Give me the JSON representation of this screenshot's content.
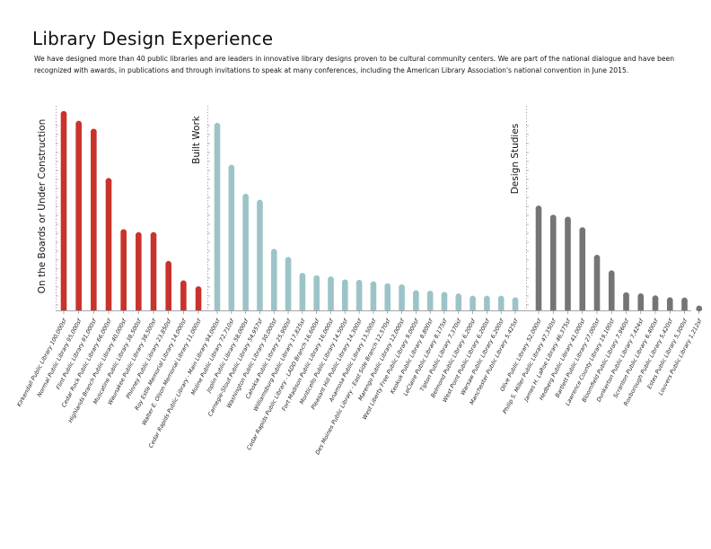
{
  "title": "Library Design Experience",
  "description": "We have designed more than 40 public libraries and are leaders in innovative library designs proven to be cultural community centers. We are part of the national dialogue and have been recognized with awards, in publications and through invitations to speak at many conferences, including the American Library Association's national convention in June 2015.",
  "colors": {
    "red": "#c8332b",
    "teal": "#9cc4c8",
    "gray": "#757575",
    "axis": "#888888"
  },
  "chart_data": {
    "type": "bar",
    "ylim": [
      0,
      102000
    ],
    "value_unit": "sf",
    "series": [
      {
        "name": "On the Boards or Under Construction",
        "color": "#c8332b",
        "categories": [
          "Kirkendall Public Library",
          "Normal Public Library",
          "Flint Public Library",
          "Cedar Rock Public Library",
          "Highlands Branch Public Library",
          "Muscatine Public Library",
          "Waunakee Public Library",
          "Phinney Public Library",
          "Roy Estle Memorial Library",
          "Walter E. Olson Memorial Library"
        ],
        "labels": [
          "Kirkendall Public Library 100,000sf",
          "Normal Public Library 95,000sf",
          "Flint Public Library 91,000sf",
          "Cedar Rock Public Library 66,000sf",
          "Highlands Branch Public Library 40,000sf",
          "Muscatine Public Library 38,500sf",
          "Waunakee Public Library 38,500sf",
          "Phinney Public Library 23,850sf",
          "Roy Estle Memorial Library 14,000sf",
          "Walter E. Olson Memorial Library 11,000sf"
        ],
        "values": [
          100000,
          95000,
          91000,
          66000,
          40000,
          38500,
          38500,
          23850,
          14000,
          11000
        ]
      },
      {
        "name": "Built Work",
        "color": "#9cc4c8",
        "categories": [
          "Cedar Rapids Public Library - Main Library",
          "Moline Public Library",
          "Joplin Public Library",
          "Carnegie-Stout Public Library",
          "Washington Public Library",
          "Cahokia Public Library",
          "Williamsburg Public Library",
          "Cedar Rapids Public Library - LADD Branch",
          "Fort Madison Public Library",
          "Monticello Public Library",
          "Pleasant Hill Public Library",
          "Anamosa Public Library",
          "Des Moines Public Library - East Side Branch",
          "Marengo Public Library",
          "West Liberty Free Public Library",
          "Keokuk Public Library",
          "LeClaire Public Library",
          "Tipton Public Library",
          "Belmond Public Library",
          "West Point Public Library",
          "Warsaw Public Library",
          "Manchester Public Library"
        ],
        "labels": [
          "Cedar Rapids Public Library - Main Library 94,000sf",
          "Moline Public Library 72,710sf",
          "Joplin Public Library 58,000sf",
          "Carnegie-Stout Public Library 54,957sf",
          "Washington Public Library 30,000sf",
          "Cahokia Public Library 25,900sf",
          "Williamsburg Public Library 17,825sf",
          "Cedar Rapids Public Library - LADD Branch 16,600sf",
          "Fort Madison Public Library 16,000sf",
          "Monticello Public Library 14,500sf",
          "Pleasant Hill Public Library 14,300sf",
          "Anamosa Public Library 13,500sf",
          "Des Moines Public Library - East Side Branch 12,570sf",
          "Marengo Public Library 12,000sf",
          "West Liberty Free Public Library 9,000sf",
          "Keokuk Public Library 8,800sf",
          "LeClaire Public Library 8,175sf",
          "Tipton Public Library 7,370sf",
          "Belmond Public Library 6,200sf",
          "West Point Public Library 6,200sf",
          "Warsaw Public Library 6,200sf",
          "Manchester Public Library 5,425sf"
        ],
        "values": [
          94000,
          72710,
          58000,
          54957,
          30000,
          25900,
          17825,
          16600,
          16000,
          14500,
          14300,
          13500,
          12570,
          12000,
          9000,
          8800,
          8175,
          7370,
          6200,
          6200,
          6200,
          5425
        ]
      },
      {
        "name": "Design Studies",
        "color": "#757575",
        "categories": [
          "Olive Public Library",
          "Philip S. Miller Public Library",
          "James H. LaRoe Library",
          "Hedberg Public Library",
          "Bartlett Public Library",
          "Lawrence County Library",
          "Bloomfield Public Library",
          "Dunkerton Public Library",
          "Scranton Public Library",
          "Roxborough Public Library",
          "Estes Public Library",
          "Louvers Public Library"
        ],
        "labels": [
          "Olive Public Library 52,000sf",
          "Philip S. Miller Public Library 47,350sf",
          "James H. LaRoe Library 46,375sf",
          "Hedberg Public Library 41,000sf",
          "Bartlett Public Library 27,000sf",
          "Lawrence County Library 19,100sf",
          "Bloomfield Public Library 7,960sf",
          "Dunkerton Public Library 7,424sf",
          "Scranton Public Library 6,400sf",
          "Roxborough Public Library 5,420sf",
          "Estes Public Library 5,300sf",
          "Louvers Public Library 1,212sf"
        ],
        "values": [
          52000,
          47350,
          46375,
          41000,
          27000,
          19100,
          7960,
          7424,
          6400,
          5420,
          5300,
          1212
        ]
      }
    ]
  }
}
